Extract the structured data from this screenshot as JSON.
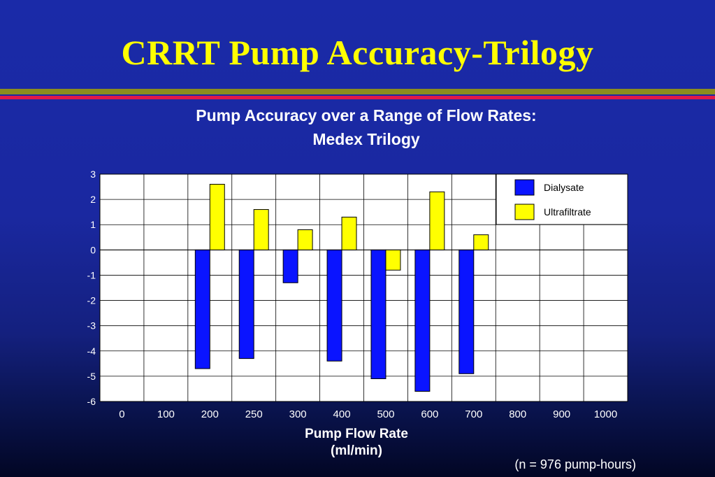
{
  "slide": {
    "title": "CRRT Pump Accuracy-Trilogy",
    "note": "(n = 976 pump-hours)",
    "colors": {
      "background": "#1a28a0",
      "title": "#ffff00",
      "rule_olive": "#8c8c1e",
      "rule_red": "#e0184a"
    }
  },
  "chart_data": {
    "type": "bar",
    "title": "Pump Accuracy over a Range of Flow Rates:",
    "subtitle": "Medex Trilogy",
    "xlabel": "Pump Flow Rate",
    "xlabel_unit": "(ml/min)",
    "ylabel": "",
    "categories": [
      "0",
      "100",
      "200",
      "250",
      "300",
      "400",
      "500",
      "600",
      "700",
      "800",
      "900",
      "1000"
    ],
    "series": [
      {
        "name": "Dialysate",
        "color": "#0a14ff",
        "values": [
          null,
          null,
          -4.7,
          -4.3,
          -1.3,
          -4.4,
          -5.1,
          -5.6,
          -4.9,
          null,
          null,
          null
        ]
      },
      {
        "name": "Ultrafiltrate",
        "color": "#ffff00",
        "values": [
          null,
          null,
          2.6,
          1.6,
          0.8,
          1.3,
          -0.8,
          2.3,
          0.6,
          null,
          null,
          null
        ]
      }
    ],
    "ylim": [
      -6,
      3
    ],
    "yticks": [
      "3",
      "2",
      "1",
      "0",
      "-1",
      "-2",
      "-3",
      "-4",
      "-5",
      "-6"
    ],
    "grid": true,
    "legend_position": "top-right"
  }
}
